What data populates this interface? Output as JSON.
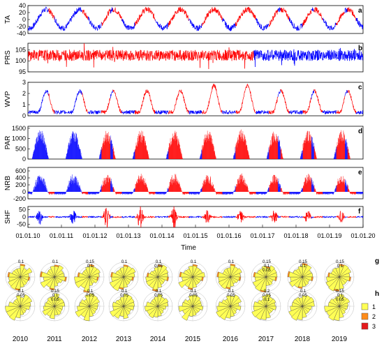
{
  "chart_data": [
    {
      "type": "line",
      "ylabel": "TA",
      "panel_label": "a",
      "yticks": [
        -40,
        -20,
        0,
        20,
        40
      ],
      "ylim": [
        -40,
        40
      ],
      "series": [
        {
          "color": "#0000ff"
        },
        {
          "color": "#ff0000"
        }
      ],
      "description_values": {
        "seasonal_peak": 30,
        "seasonal_trough": -25
      }
    },
    {
      "type": "line",
      "ylabel": "PRS",
      "panel_label": "b",
      "yticks": [
        95,
        100,
        105
      ],
      "ylim": [
        95,
        108
      ],
      "series": [
        {
          "color": "#ff0000"
        },
        {
          "color": "#0000ff"
        }
      ],
      "description_values": {
        "mean": 102.5
      }
    },
    {
      "type": "line",
      "ylabel": "WVP",
      "panel_label": "c",
      "yticks": [
        0,
        1,
        2,
        3
      ],
      "ylim": [
        0,
        3
      ],
      "series": [
        {
          "color": "#0000ff"
        },
        {
          "color": "#ff0000"
        }
      ],
      "description_values": {
        "seasonal_peak": 2.0
      }
    },
    {
      "type": "area",
      "ylabel": "PAR",
      "panel_label": "d",
      "yticks": [
        0,
        500,
        1000,
        1500
      ],
      "ylim": [
        0,
        1600
      ],
      "series": [
        {
          "color": "#0000ff"
        },
        {
          "color": "#ff0000"
        }
      ],
      "description_values": {
        "seasonal_peak": 1450
      }
    },
    {
      "type": "area",
      "ylabel": "NRB",
      "panel_label": "e",
      "yticks": [
        -200,
        0,
        200,
        400,
        600
      ],
      "ylim": [
        -200,
        700
      ],
      "series": [
        {
          "color": "#0000ff"
        },
        {
          "color": "#ff0000"
        }
      ],
      "description_values": {
        "seasonal_peak": 520
      }
    },
    {
      "type": "line",
      "ylabel": "SHF",
      "panel_label": "f",
      "yticks": [
        -50,
        0,
        50
      ],
      "ylim": [
        -70,
        70
      ],
      "series": [
        {
          "color": "#0000ff"
        },
        {
          "color": "#ff0000"
        }
      ],
      "description_values": {
        "seasonal_peak": 55
      }
    }
  ],
  "x_axis": {
    "label": "Time",
    "ticks": [
      "01.01.10",
      "01.01.11",
      "01.01.12",
      "01.01.13",
      "01.01.14",
      "01.01.15",
      "01.01.16",
      "01.01.17",
      "01.01.18",
      "01.01.19",
      "01.01.20"
    ]
  },
  "roses": {
    "years": [
      "2010",
      "2011",
      "2012",
      "2013",
      "2014",
      "2015",
      "2016",
      "2017",
      "2018",
      "2019"
    ],
    "row_labels": [
      "g",
      "h"
    ],
    "ring_labels_g": [
      [
        "0.1"
      ],
      [
        "0.1"
      ],
      [
        "0.15",
        "0.1"
      ],
      [
        "0.1"
      ],
      [
        "0.1",
        "0.05"
      ],
      [
        "0.1"
      ],
      [
        "0.1"
      ],
      [
        "0.15",
        "0.1",
        "0.05"
      ],
      [
        "0.15",
        "0.1"
      ],
      [
        "0.15",
        "0.1"
      ]
    ],
    "ring_labels_h": [
      [
        "0.1",
        "0.05"
      ],
      [
        "0.15",
        "0.1",
        "0.05"
      ],
      [
        "0.1",
        "0.05"
      ],
      [
        "0.1",
        "0.05"
      ],
      [
        "0.1",
        "0.05"
      ],
      [
        "0.1",
        "0.05"
      ],
      [
        "0.1",
        "0.05"
      ],
      [
        "0.2",
        "0.15",
        "0.1"
      ],
      [
        "0.1",
        "0.05"
      ],
      [
        "0.15",
        "0.1",
        "0.05"
      ]
    ]
  },
  "legend": [
    {
      "label": "1",
      "color": "#ffff55"
    },
    {
      "label": "2",
      "color": "#ff8c1a"
    },
    {
      "label": "3",
      "color": "#e41a1c"
    }
  ]
}
